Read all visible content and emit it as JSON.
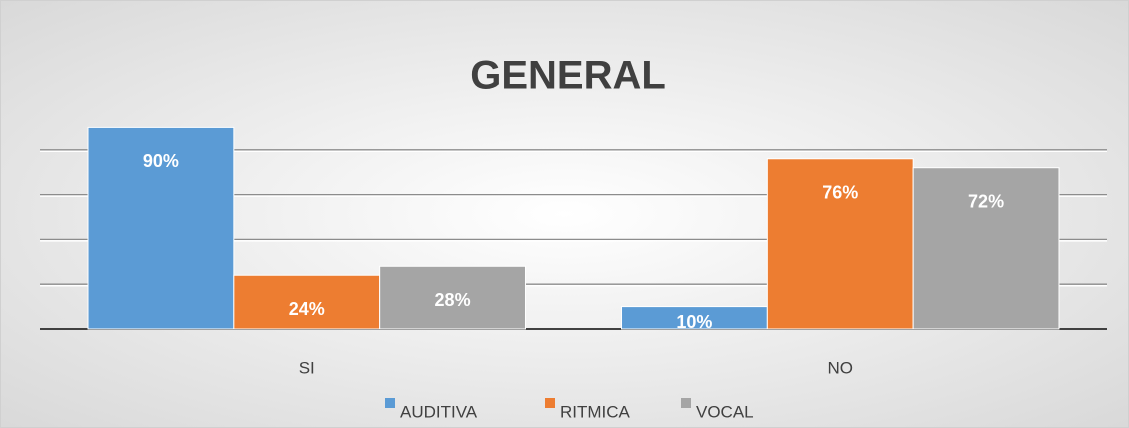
{
  "chart_data": {
    "type": "bar",
    "title": "GENERAL",
    "categories": [
      "SI",
      "NO"
    ],
    "series": [
      {
        "name": "AUDITIVA",
        "color": "#5b9bd5",
        "values": [
          90,
          10
        ],
        "value_labels": [
          "90%",
          "10%"
        ]
      },
      {
        "name": "RITMICA",
        "color": "#ed7d31",
        "values": [
          24,
          76
        ],
        "value_labels": [
          "24%",
          "76%"
        ]
      },
      {
        "name": "VOCAL",
        "color": "#a5a5a5",
        "values": [
          28,
          72
        ],
        "value_labels": [
          "28%",
          "72%"
        ]
      }
    ],
    "ylim": [
      0,
      100
    ],
    "yticks": [
      0,
      20,
      40,
      60,
      80
    ],
    "grid": true,
    "legend": "bottom"
  }
}
